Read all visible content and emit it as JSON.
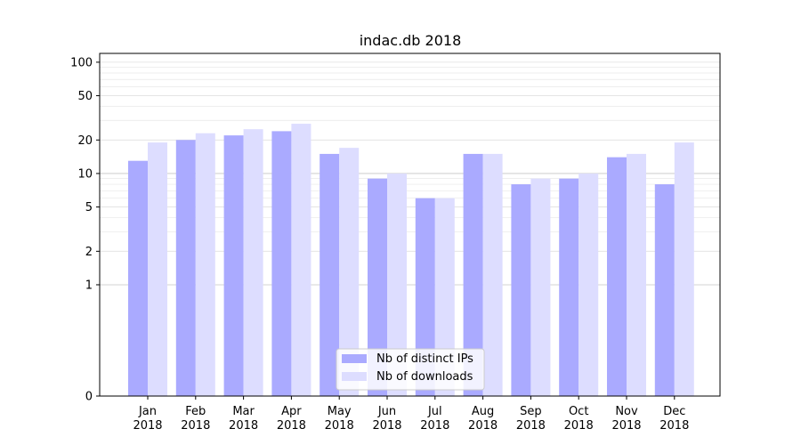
{
  "chart_data": {
    "type": "bar",
    "title": "indac.db 2018",
    "y_scale": "symlog",
    "ylim": [
      0,
      120
    ],
    "y_ticks": [
      0,
      1,
      2,
      5,
      10,
      20,
      50,
      100
    ],
    "grid": "horizontal",
    "legend_position": "bottom-center",
    "categories": [
      [
        "Jan",
        "2018"
      ],
      [
        "Feb",
        "2018"
      ],
      [
        "Mar",
        "2018"
      ],
      [
        "Apr",
        "2018"
      ],
      [
        "May",
        "2018"
      ],
      [
        "Jun",
        "2018"
      ],
      [
        "Jul",
        "2018"
      ],
      [
        "Aug",
        "2018"
      ],
      [
        "Sep",
        "2018"
      ],
      [
        "Oct",
        "2018"
      ],
      [
        "Nov",
        "2018"
      ],
      [
        "Dec",
        "2018"
      ]
    ],
    "series": [
      {
        "name": "Nb of distinct IPs",
        "color": "#aaaaff",
        "values": [
          13,
          20,
          22,
          24,
          15,
          9,
          6,
          15,
          8,
          9,
          14,
          8
        ]
      },
      {
        "name": "Nb of downloads",
        "color": "#ddddff",
        "values": [
          19,
          23,
          25,
          28,
          17,
          10,
          6,
          15,
          9,
          10,
          15,
          19
        ]
      }
    ]
  }
}
